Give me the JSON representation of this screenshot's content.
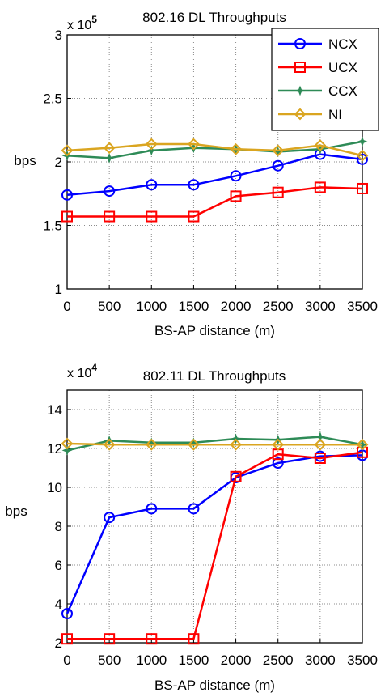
{
  "chart_data": [
    {
      "type": "line",
      "title": "802.16 DL Throughputs",
      "multiplier": "x 10",
      "multiplier_exp": "5",
      "ylabel": "bps",
      "xlabel": "BS-AP distance (m)",
      "x": [
        0,
        500,
        1000,
        1500,
        2000,
        2500,
        3000,
        3500
      ],
      "xlim": [
        0,
        3500
      ],
      "ylim": [
        1,
        3
      ],
      "yticks": [
        1,
        1.5,
        2,
        2.5,
        3
      ],
      "ytick_labels": [
        "1",
        "1.5",
        "2",
        "2.5",
        "3"
      ],
      "grid": true,
      "legend": "top-right",
      "series": [
        {
          "name": "NCX",
          "color": "#0000ff",
          "marker": "circle",
          "values": [
            1.74,
            1.77,
            1.82,
            1.82,
            1.89,
            1.97,
            2.06,
            2.02
          ]
        },
        {
          "name": "UCX",
          "color": "#ff0000",
          "marker": "square",
          "values": [
            1.57,
            1.57,
            1.57,
            1.57,
            1.73,
            1.76,
            1.8,
            1.79
          ]
        },
        {
          "name": "CCX",
          "color": "#2e8b57",
          "marker": "star",
          "values": [
            2.05,
            2.03,
            2.09,
            2.11,
            2.1,
            2.08,
            2.1,
            2.16
          ]
        },
        {
          "name": "NI",
          "color": "#daa520",
          "marker": "diamond",
          "values": [
            2.09,
            2.11,
            2.14,
            2.14,
            2.1,
            2.09,
            2.13,
            2.05
          ]
        }
      ]
    },
    {
      "type": "line",
      "title": "802.11 DL Throughputs",
      "multiplier": "x 10",
      "multiplier_exp": "4",
      "ylabel": "bps",
      "xlabel": "BS-AP distance (m)",
      "x": [
        0,
        500,
        1000,
        1500,
        2000,
        2500,
        3000,
        3500
      ],
      "xlim": [
        0,
        3500
      ],
      "ylim": [
        2,
        15
      ],
      "yticks": [
        2,
        4,
        6,
        8,
        10,
        12,
        14
      ],
      "ytick_labels": [
        "2",
        "4",
        "6",
        "8",
        "10",
        "12",
        "14"
      ],
      "grid": true,
      "legend": "none",
      "series": [
        {
          "name": "NCX",
          "color": "#0000ff",
          "marker": "circle",
          "values": [
            3.5,
            8.45,
            8.9,
            8.9,
            10.5,
            11.25,
            11.6,
            11.65
          ]
        },
        {
          "name": "UCX",
          "color": "#ff0000",
          "marker": "square",
          "values": [
            2.2,
            2.2,
            2.2,
            2.2,
            10.55,
            11.7,
            11.5,
            11.8
          ]
        },
        {
          "name": "CCX",
          "color": "#2e8b57",
          "marker": "star",
          "values": [
            11.9,
            12.4,
            12.3,
            12.3,
            12.5,
            12.45,
            12.6,
            12.2
          ]
        },
        {
          "name": "NI",
          "color": "#daa520",
          "marker": "diamond",
          "values": [
            12.25,
            12.2,
            12.2,
            12.2,
            12.2,
            12.2,
            12.2,
            12.2
          ]
        }
      ]
    }
  ]
}
